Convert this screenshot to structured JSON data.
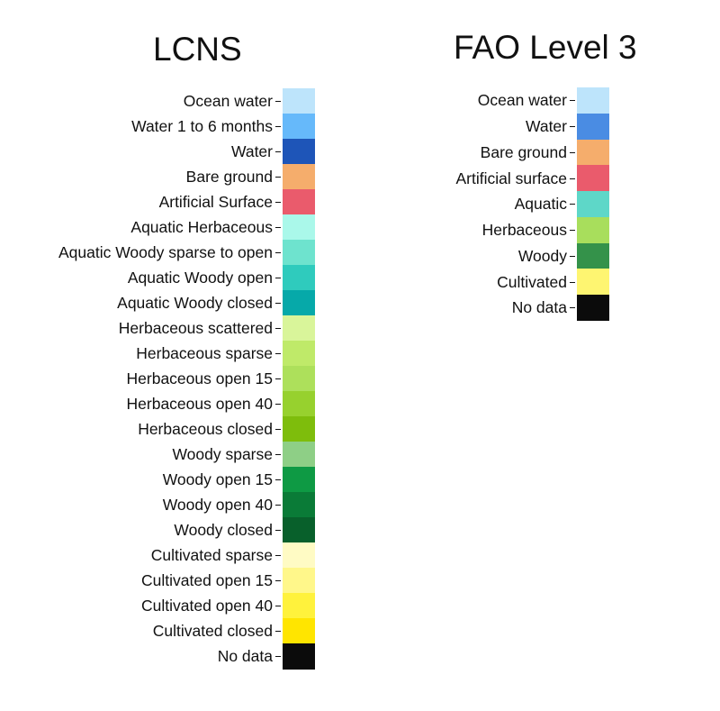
{
  "chart_data": [
    {
      "type": "legend",
      "title": "LCNS",
      "entries": [
        {
          "label": "Ocean water",
          "color": "#bde4fb"
        },
        {
          "label": "Water 1 to 6 months",
          "color": "#66b9fa"
        },
        {
          "label": "Water",
          "color": "#1e55b8"
        },
        {
          "label": "Bare ground",
          "color": "#f5ad6c"
        },
        {
          "label": "Artificial Surface",
          "color": "#ea5b6c"
        },
        {
          "label": "Aquatic Herbaceous",
          "color": "#aaf8ea"
        },
        {
          "label": "Aquatic Woody sparse to open",
          "color": "#6ee3ce"
        },
        {
          "label": "Aquatic Woody open",
          "color": "#2fcbbd"
        },
        {
          "label": "Aquatic Woody closed",
          "color": "#06a9a9"
        },
        {
          "label": "Herbaceous scattered",
          "color": "#d9f59a"
        },
        {
          "label": "Herbaceous sparse",
          "color": "#bfea69"
        },
        {
          "label": "Herbaceous open 15",
          "color": "#ade05b"
        },
        {
          "label": "Herbaceous open 40",
          "color": "#97d12e"
        },
        {
          "label": "Herbaceous closed",
          "color": "#7ebd0c"
        },
        {
          "label": "Woody sparse",
          "color": "#8ecf86"
        },
        {
          "label": "Woody open 15",
          "color": "#0e9a44"
        },
        {
          "label": "Woody open 40",
          "color": "#0a7b37"
        },
        {
          "label": "Woody closed",
          "color": "#08602b"
        },
        {
          "label": "Cultivated sparse",
          "color": "#fffbc4"
        },
        {
          "label": "Cultivated open 15",
          "color": "#fff78a"
        },
        {
          "label": "Cultivated open 40",
          "color": "#fff23c"
        },
        {
          "label": "Cultivated closed",
          "color": "#ffe500"
        },
        {
          "label": "No data",
          "color": "#0b0b0b"
        }
      ]
    },
    {
      "type": "legend",
      "title": "FAO Level 3",
      "entries": [
        {
          "label": "Ocean water",
          "color": "#bde4fb"
        },
        {
          "label": "Water",
          "color": "#4a8ce3"
        },
        {
          "label": "Bare ground",
          "color": "#f5ad6c"
        },
        {
          "label": "Artificial surface",
          "color": "#ea5b6c"
        },
        {
          "label": "Aquatic",
          "color": "#5ed7c8"
        },
        {
          "label": "Herbaceous",
          "color": "#a8de5c"
        },
        {
          "label": "Woody",
          "color": "#34924a"
        },
        {
          "label": "Cultivated",
          "color": "#fef571"
        },
        {
          "label": "No data",
          "color": "#0b0b0b"
        }
      ]
    }
  ]
}
